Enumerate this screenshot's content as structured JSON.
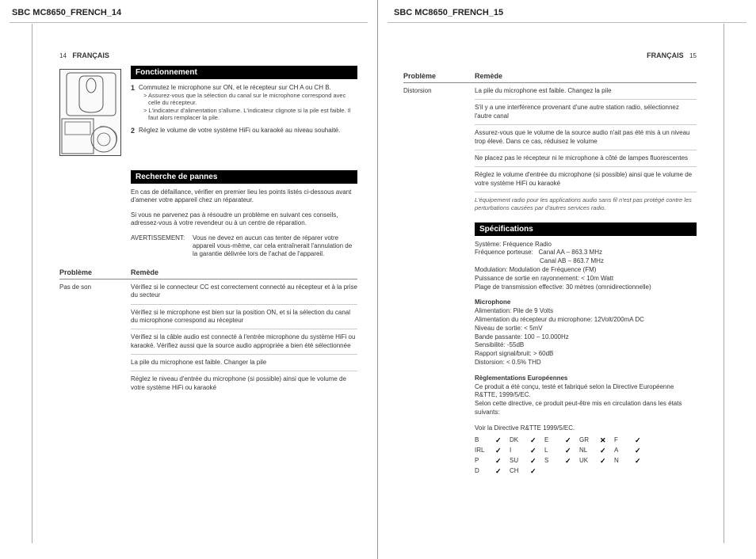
{
  "left": {
    "docHeader": "SBC MC8650_FRENCH_14",
    "pageNum": "14",
    "lang": "FRANÇAIS",
    "fonctionnement": {
      "title": "Fonctionnement",
      "step1": "Commutez le microphone sur ON, et le récepteur sur CH A ou CH B.",
      "step1_sub1": "> Assurez-vous que la sélection du canal sur le microphone correspond avec celle du récepteur.",
      "step1_sub2": "> L'indicateur d'alimentation s'allume. L'indicateur clignote si la pile est faible. Il faut alors remplacer la pile.",
      "step2": "Réglez le volume de votre système HiFi ou karaoké au niveau souhaité."
    },
    "recherche": {
      "title": "Recherche de pannes",
      "p1": "En cas de défaillance, vérifier en premier lieu les points listés ci-dessous avant d'amener votre appareil chez un réparateur.",
      "p2": "Si vous ne parvenez pas à résoudre un problème en suivant ces conseils, adressez-vous à votre revendeur ou à un centre de réparation.",
      "warn_label": "AVERTISSEMENT:",
      "warn_text": "Vous ne devez en aucun cas tenter de réparer votre appareil vous-même, car cela entraînerait l'annulation de la garantie délivrée lors de l'achat de l'appareil."
    },
    "table": {
      "h1": "Problème",
      "h2": "Remède",
      "prob1": "Pas de son",
      "rows": [
        "Vérifiez si le connecteur CC est correctement connecté au récepteur et à la prise du secteur",
        "Vérifiez si le microphone est bien sur la position ON, et si la sélection du canal du microphone correspond au récepteur",
        "Vérifiez si la câble audio est connecté à l'entrée microphone du système HiFi ou karaoké. Vérifiez aussi que la source audio appropriée a bien été sélectionnée",
        "La pile du microphone est faible. Changer la pile",
        "Réglez le niveau d'entrée du microphone (si possible) ainsi que le volume de votre système HiFi ou karaoké"
      ]
    }
  },
  "right": {
    "docHeader": "SBC MC8650_FRENCH_15",
    "pageNum": "15",
    "lang": "FRANÇAIS",
    "table": {
      "h1": "Problème",
      "h2": "Remède",
      "prob1": "Distorsion",
      "rows": [
        "La pile du microphone est faible. Changez la pile",
        "S'il y a une interférence provenant d'une autre station radio, sélectionnez l'autre canal",
        "Assurez-vous que le volume de la source audio n'ait pas été mis à un niveau trop élevé. Dans ce cas, réduisez le volume",
        "Ne placez pas le récepteur ni le microphone à côté de lampes fluorescentes",
        "Réglez le volume d'entrée du microphone (si possible) ainsi que le volume de votre système HiFi ou karaoké"
      ],
      "note": "L'équipement radio pour les applications audio sans fil n'est pas protégé contre les perturbations causées par d'autres services radio."
    },
    "spec": {
      "title": "Spécifications",
      "block1_l1": "Système: Fréquence Radio",
      "block1_l2a": "Fréquence porteuse:",
      "block1_l2b": "Canal AA – 863.3 MHz",
      "block1_l2c": "Canal AB – 863.7 MHz",
      "block1_l3": "Modulation: Modulation de Fréquence (FM)",
      "block1_l4": "Puissance de sortie en rayonnement: < 10m Watt",
      "block1_l5": "Plage de transmission effective: 30 mètres (omnidirectionnelle)",
      "block2_h": "Microphone",
      "block2_l1": "Alimentation: Pile de 9 Volts",
      "block2_l2": "Alimentation du récepteur du microphone: 12Volt/200mA DC",
      "block2_l3": "Niveau de sortie: < 5mV",
      "block2_l4": "Bande passante: 100 – 10.000Hz",
      "block2_l5": "Sensibilité: -55dB",
      "block2_l6": "Rapport signal/bruit: > 60dB",
      "block2_l7": "Distorsion: < 0.5% THD",
      "block3_h": "Règlementations Européennes",
      "block3_l1": "Ce produit a été conçu, testé et fabriqué selon la Directive Européenne R&TTE, 1999/5/EC.",
      "block3_l2": "Selon cette directive, ce produit peut-être mis en circulation dans les états suivants:",
      "block3_l3": "Voir la Directive R&TTE 1999/5/EC."
    },
    "countries": [
      [
        "B",
        "chk",
        "DK",
        "chk",
        "E",
        "chk",
        "GR",
        "crs",
        "F",
        "chk"
      ],
      [
        "IRL",
        "chk",
        "I",
        "chk",
        "L",
        "chk",
        "NL",
        "chk",
        "A",
        "chk"
      ],
      [
        "P",
        "chk",
        "SU",
        "chk",
        "S",
        "chk",
        "UK",
        "chk",
        "N",
        "chk"
      ],
      [
        "D",
        "chk",
        "CH",
        "chk",
        "",
        "",
        "",
        "",
        "",
        ""
      ]
    ]
  }
}
